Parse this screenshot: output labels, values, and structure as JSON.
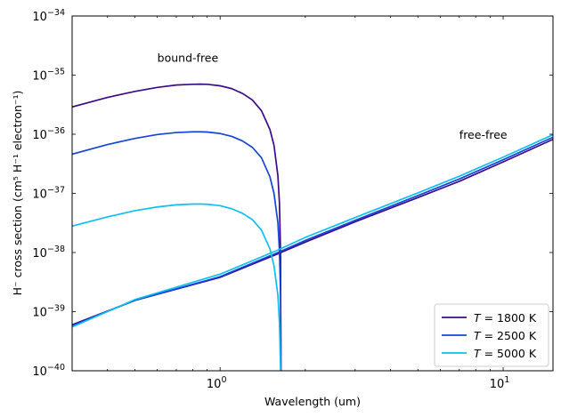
{
  "chart_data": {
    "type": "line",
    "xlabel": "Wavelength (um)",
    "ylabel": "H⁻ cross section (cm⁵ H⁻¹  electron⁻¹)",
    "xscale": "log",
    "yscale": "log",
    "xlim": [
      0.3,
      15
    ],
    "ylim": [
      1e-40,
      1e-34
    ],
    "x_ticks": [
      {
        "value": 1,
        "base": "10",
        "exp": "0"
      },
      {
        "value": 10,
        "base": "10",
        "exp": "1"
      }
    ],
    "y_ticks": [
      {
        "value": 1e-40,
        "base": "10",
        "exp": "−40"
      },
      {
        "value": 1e-39,
        "base": "10",
        "exp": "−39"
      },
      {
        "value": 1e-38,
        "base": "10",
        "exp": "−38"
      },
      {
        "value": 1e-37,
        "base": "10",
        "exp": "−37"
      },
      {
        "value": 1e-36,
        "base": "10",
        "exp": "−36"
      },
      {
        "value": 1e-35,
        "base": "10",
        "exp": "−35"
      },
      {
        "value": 1e-34,
        "base": "10",
        "exp": "−34"
      }
    ],
    "grid": false,
    "legend_position": "bottom-right",
    "annotations": [
      {
        "text": "bound-free",
        "x": 0.6,
        "y": 2e-35
      },
      {
        "text": "free-free",
        "x": 7.0,
        "y": 1e-36
      }
    ],
    "series": [
      {
        "name": "T = 1800 K",
        "legend_var": "T",
        "legend_rest": " = 1800 K",
        "color": "#3d0a8a",
        "bound_free": {
          "x": [
            0.3,
            0.4,
            0.5,
            0.6,
            0.7,
            0.8,
            0.85,
            0.9,
            1.0,
            1.1,
            1.2,
            1.3,
            1.4,
            1.5,
            1.55,
            1.6,
            1.62,
            1.635,
            1.64
          ],
          "y": [
            2.9e-36,
            4.2e-36,
            5.3e-36,
            6.2e-36,
            6.8e-36,
            7e-36,
            7.05e-36,
            7e-36,
            6.6e-36,
            5.9e-36,
            4.9e-36,
            3.8e-36,
            2.5e-36,
            1.2e-36,
            6.5e-37,
            2e-37,
            7e-38,
            1e-38,
            1e-40
          ]
        },
        "free_free": {
          "x": [
            0.3,
            0.5,
            1.0,
            1.6,
            2.0,
            3.0,
            5.0,
            7.0,
            10.0,
            15.0
          ],
          "y": [
            6e-40,
            1.55e-39,
            3.8e-39,
            9.5e-39,
            1.5e-38,
            3.3e-38,
            8.5e-38,
            1.6e-37,
            3.4e-37,
            8.2e-37
          ]
        }
      },
      {
        "name": "T = 2500 K",
        "legend_var": "T",
        "legend_rest": " = 2500 K",
        "color": "#1446d6",
        "bound_free": {
          "x": [
            0.3,
            0.4,
            0.5,
            0.6,
            0.7,
            0.8,
            0.85,
            0.9,
            1.0,
            1.1,
            1.2,
            1.3,
            1.4,
            1.5,
            1.55,
            1.6,
            1.62,
            1.635,
            1.64
          ],
          "y": [
            4.6e-37,
            6.7e-37,
            8.5e-37,
            9.9e-37,
            1.07e-36,
            1.1e-36,
            1.1e-36,
            1.09e-36,
            1.03e-36,
            9.2e-37,
            7.7e-37,
            6e-37,
            4e-37,
            1.9e-37,
            1e-37,
            3.2e-38,
            1.1e-38,
            2e-39,
            1e-40
          ]
        },
        "free_free": {
          "x": [
            0.3,
            0.5,
            1.0,
            1.6,
            2.0,
            3.0,
            5.0,
            7.0,
            10.0,
            15.0
          ],
          "y": [
            5.8e-40,
            1.55e-39,
            3.9e-39,
            1e-38,
            1.6e-38,
            3.5e-38,
            9.2e-38,
            1.75e-37,
            3.7e-37,
            8.9e-37
          ]
        }
      },
      {
        "name": "T = 5000 K",
        "legend_var": "T",
        "legend_rest": " = 5000 K",
        "color": "#10bff2",
        "bound_free": {
          "x": [
            0.3,
            0.4,
            0.5,
            0.6,
            0.7,
            0.8,
            0.85,
            0.9,
            1.0,
            1.1,
            1.2,
            1.3,
            1.4,
            1.5,
            1.55,
            1.6,
            1.62,
            1.63,
            1.635
          ],
          "y": [
            2.8e-38,
            4e-38,
            5.1e-38,
            5.9e-38,
            6.4e-38,
            6.6e-38,
            6.6e-38,
            6.55e-38,
            6.2e-38,
            5.5e-38,
            4.6e-38,
            3.6e-38,
            2.4e-38,
            1.15e-38,
            6e-39,
            1.9e-39,
            6.5e-40,
            2e-40,
            1e-40
          ]
        },
        "free_free": {
          "x": [
            0.3,
            0.5,
            1.0,
            1.6,
            2.0,
            3.0,
            5.0,
            7.0,
            10.0,
            15.0
          ],
          "y": [
            5.5e-40,
            1.6e-39,
            4.3e-39,
            1.1e-38,
            1.8e-38,
            3.9e-38,
            1.02e-37,
            1.95e-37,
            4.1e-37,
            9.8e-37
          ]
        }
      }
    ]
  }
}
